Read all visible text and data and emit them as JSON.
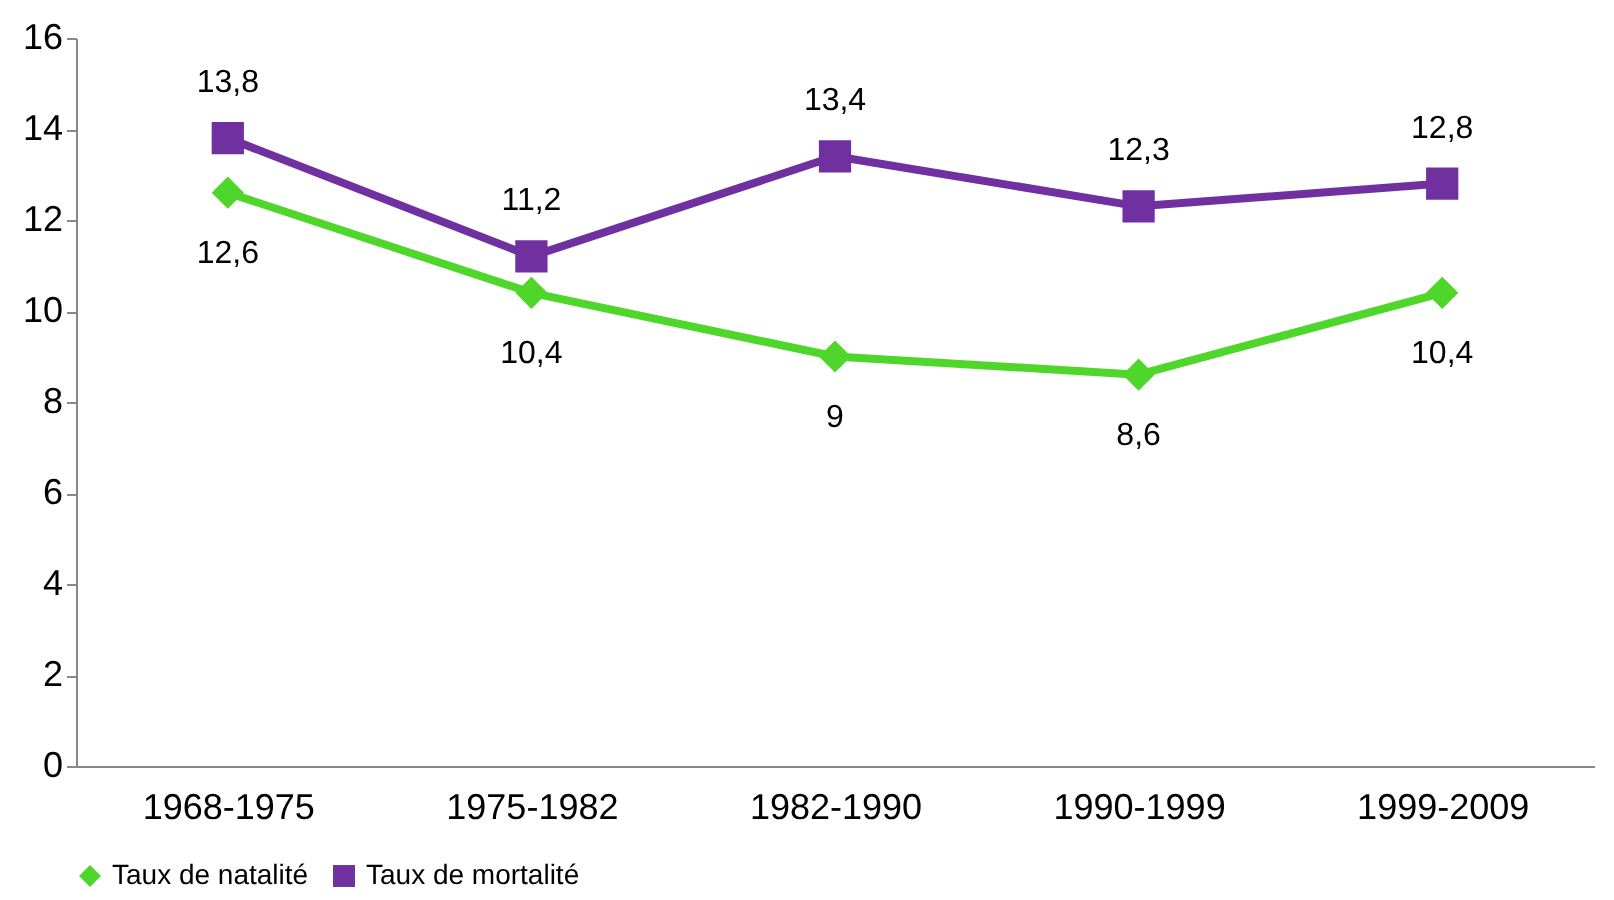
{
  "chart_data": {
    "type": "line",
    "categories": [
      "1968-1975",
      "1975-1982",
      "1982-1990",
      "1990-1999",
      "1999-2009"
    ],
    "series": [
      {
        "name": "Taux de natalité",
        "color": "#4fd62b",
        "marker": "diamond",
        "values": [
          12.6,
          10.4,
          9,
          8.6,
          10.4
        ],
        "value_labels": [
          "12,6",
          "10,4",
          "9",
          "8,6",
          "10,4"
        ]
      },
      {
        "name": "Taux de mortalité",
        "color": "#7030a0",
        "marker": "square",
        "values": [
          13.8,
          11.2,
          13.4,
          12.3,
          12.8
        ],
        "value_labels": [
          "13,8",
          "11,2",
          "13,4",
          "12,3",
          "12,8"
        ]
      }
    ],
    "ylim": [
      0,
      16
    ],
    "yticks": [
      0,
      2,
      4,
      6,
      8,
      10,
      12,
      14,
      16
    ],
    "grid": false,
    "legend": "bottom",
    "line_style": "solid"
  }
}
